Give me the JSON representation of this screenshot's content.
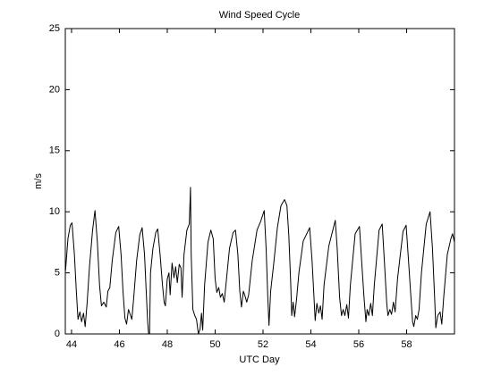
{
  "chart_data": {
    "type": "line",
    "title": "Wind Speed Cycle",
    "xlabel": "UTC Day",
    "ylabel": "m/s",
    "color": "#000000",
    "xlim": [
      43.74,
      60
    ],
    "ylim": [
      0,
      25
    ],
    "xticks": [
      44,
      46,
      48,
      50,
      52,
      54,
      56,
      58
    ],
    "yticks": [
      0,
      5,
      10,
      15,
      20,
      25
    ],
    "x": [
      43.75,
      43.85,
      43.95,
      44.02,
      44.12,
      44.2,
      44.27,
      44.35,
      44.42,
      44.5,
      44.57,
      44.65,
      44.75,
      44.88,
      44.98,
      45.08,
      45.17,
      45.25,
      45.35,
      45.45,
      45.52,
      45.6,
      45.7,
      45.85,
      45.97,
      46.07,
      46.15,
      46.23,
      46.3,
      46.38,
      46.45,
      46.52,
      46.6,
      46.72,
      46.85,
      46.95,
      47.05,
      47.12,
      47.18,
      47.22,
      47.26,
      47.3,
      47.4,
      47.52,
      47.6,
      47.7,
      47.8,
      47.87,
      47.92,
      48.0,
      48.07,
      48.12,
      48.2,
      48.28,
      48.35,
      48.42,
      48.5,
      48.57,
      48.62,
      48.7,
      48.82,
      48.92,
      48.97,
      49.0,
      49.07,
      49.15,
      49.22,
      49.3,
      49.37,
      49.43,
      49.48,
      49.56,
      49.7,
      49.82,
      49.92,
      50.0,
      50.07,
      50.15,
      50.22,
      50.3,
      50.38,
      50.45,
      50.6,
      50.75,
      50.85,
      50.95,
      51.03,
      51.1,
      51.18,
      51.25,
      51.32,
      51.4,
      51.55,
      51.75,
      51.9,
      52.05,
      52.13,
      52.2,
      52.25,
      52.32,
      52.45,
      52.6,
      52.75,
      52.9,
      53.0,
      53.08,
      53.16,
      53.2,
      53.26,
      53.32,
      53.4,
      53.5,
      53.68,
      53.95,
      54.05,
      54.13,
      54.18,
      54.25,
      54.33,
      54.4,
      54.47,
      54.55,
      54.75,
      55.02,
      55.1,
      55.2,
      55.28,
      55.35,
      55.42,
      55.5,
      55.57,
      55.65,
      55.85,
      56.03,
      56.12,
      56.22,
      56.3,
      56.35,
      56.42,
      56.5,
      56.57,
      56.65,
      56.85,
      56.98,
      57.07,
      57.17,
      57.22,
      57.3,
      57.37,
      57.45,
      57.52,
      57.62,
      57.85,
      57.98,
      58.08,
      58.18,
      58.25,
      58.3,
      58.38,
      58.45,
      58.52,
      58.62,
      58.82,
      58.98,
      59.08,
      59.17,
      59.22,
      59.3,
      59.4,
      59.47,
      59.55,
      59.7,
      59.85,
      59.92,
      60.0
    ],
    "values": [
      5.2,
      7.8,
      8.9,
      9.1,
      6.5,
      3.5,
      1.2,
      1.8,
      1,
      1.7,
      0.6,
      2.5,
      5.5,
      8.5,
      10.1,
      7.5,
      4,
      2.3,
      2.6,
      2.2,
      3.5,
      3.8,
      6,
      8.3,
      8.8,
      6.5,
      3.5,
      1.3,
      0.8,
      2,
      1.6,
      1.2,
      3,
      6,
      8.1,
      8.7,
      6.5,
      3.5,
      1,
      0,
      0,
      5,
      7,
      8.3,
      8.6,
      6.5,
      4,
      2.6,
      2.3,
      4.5,
      5,
      3.2,
      5.8,
      4.6,
      5.5,
      4.2,
      5.7,
      5.4,
      3,
      6.5,
      8.5,
      9,
      12,
      6.5,
      2,
      1.5,
      1.2,
      0,
      0.4,
      1.7,
      0.3,
      4,
      7.5,
      8.5,
      7.8,
      4.5,
      3.4,
      3.8,
      3,
      3.3,
      2.6,
      4,
      7,
      8.3,
      8.5,
      6.5,
      3.5,
      2.2,
      3.5,
      3.1,
      2.6,
      3.2,
      6,
      8.5,
      9.2,
      10.1,
      7,
      3,
      0.7,
      3.5,
      5.8,
      8.7,
      10.5,
      11,
      10.5,
      8,
      4,
      1.5,
      2.6,
      1.4,
      2.8,
      5,
      7.6,
      8.7,
      6,
      3,
      1.1,
      2.5,
      1.7,
      2.3,
      1.2,
      4,
      7.2,
      9.3,
      7,
      3,
      1.5,
      2,
      1.5,
      2.4,
      1.3,
      4,
      8.2,
      8.8,
      6,
      3,
      1,
      2,
      1.5,
      2.5,
      1.5,
      4,
      8.5,
      9,
      6,
      2.5,
      1.5,
      2,
      1.6,
      2.6,
      1.8,
      4.5,
      8.4,
      8.9,
      6,
      3,
      1,
      0.6,
      1.5,
      1.2,
      2,
      5,
      9,
      10,
      7,
      3,
      0.5,
      1.5,
      1.8,
      0.8,
      3,
      6.5,
      7.8,
      8.2,
      7.5
    ]
  }
}
